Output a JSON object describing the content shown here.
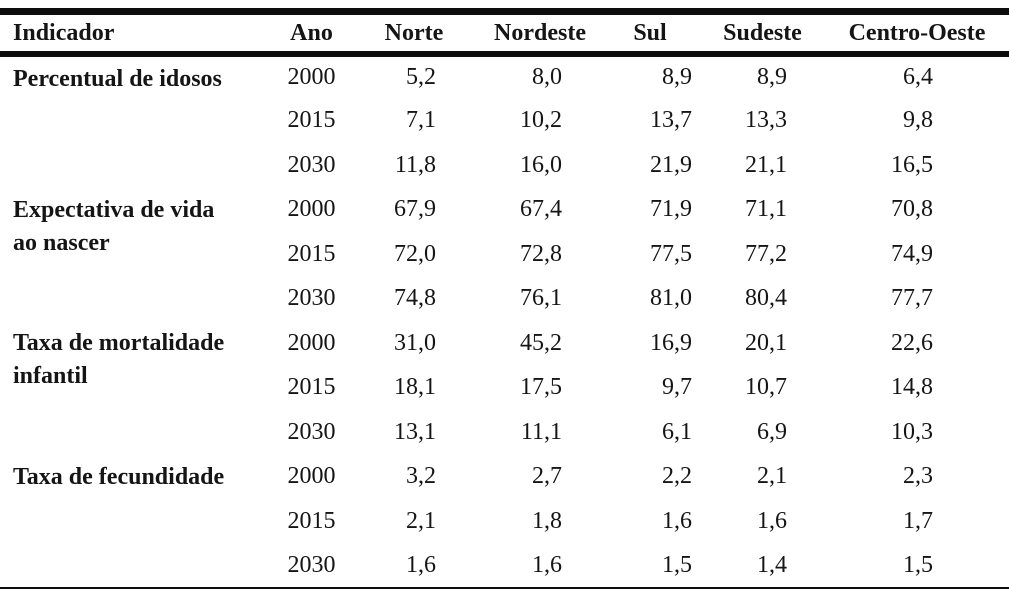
{
  "colors": {
    "text": "#151515",
    "rule": "#0d0d0d",
    "background": "#ffffff"
  },
  "table": {
    "columns": [
      "Indicador",
      "Ano",
      "Norte",
      "Nordeste",
      "Sul",
      "Sudeste",
      "Centro-Oeste"
    ],
    "sections": [
      {
        "indicator": "Percentual de idosos",
        "rows": [
          {
            "ano": "2000",
            "values": [
              "5,2",
              "8,0",
              "8,9",
              "8,9",
              "6,4"
            ]
          },
          {
            "ano": "2015",
            "values": [
              "7,1",
              "10,2",
              "13,7",
              "13,3",
              "9,8"
            ]
          },
          {
            "ano": "2030",
            "values": [
              "11,8",
              "16,0",
              "21,9",
              "21,1",
              "16,5"
            ]
          }
        ]
      },
      {
        "indicator": "Expectativa de vida\nao nascer",
        "rows": [
          {
            "ano": "2000",
            "values": [
              "67,9",
              "67,4",
              "71,9",
              "71,1",
              "70,8"
            ]
          },
          {
            "ano": "2015",
            "values": [
              "72,0",
              "72,8",
              "77,5",
              "77,2",
              "74,9"
            ]
          },
          {
            "ano": "2030",
            "values": [
              "74,8",
              "76,1",
              "81,0",
              "80,4",
              "77,7"
            ]
          }
        ]
      },
      {
        "indicator": "Taxa de mortalidade\ninfantil",
        "rows": [
          {
            "ano": "2000",
            "values": [
              "31,0",
              "45,2",
              "16,9",
              "20,1",
              "22,6"
            ]
          },
          {
            "ano": "2015",
            "values": [
              "18,1",
              "17,5",
              "9,7",
              "10,7",
              "14,8"
            ]
          },
          {
            "ano": "2030",
            "values": [
              "13,1",
              "11,1",
              "6,1",
              "6,9",
              "10,3"
            ]
          }
        ]
      },
      {
        "indicator": "Taxa de fecundidade",
        "rows": [
          {
            "ano": "2000",
            "values": [
              "3,2",
              "2,7",
              "2,2",
              "2,1",
              "2,3"
            ]
          },
          {
            "ano": "2015",
            "values": [
              "2,1",
              "1,8",
              "1,6",
              "1,6",
              "1,7"
            ]
          },
          {
            "ano": "2030",
            "values": [
              "1,6",
              "1,6",
              "1,5",
              "1,4",
              "1,5"
            ]
          }
        ]
      }
    ]
  }
}
